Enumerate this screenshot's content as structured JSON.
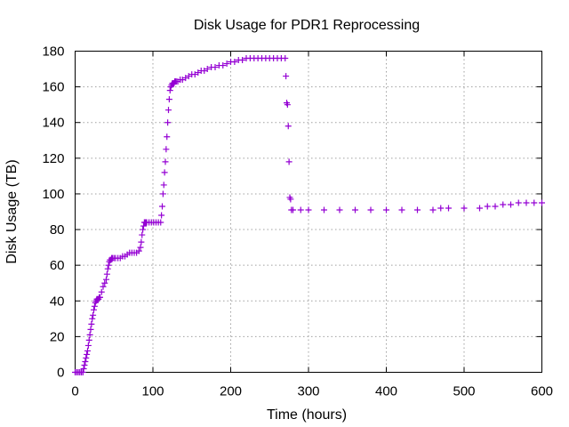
{
  "chart_data": {
    "type": "scatter",
    "title": "Disk Usage for PDR1 Reprocessing",
    "xlabel": "Time (hours)",
    "ylabel": "Disk Usage (TB)",
    "xlim": [
      0,
      600
    ],
    "ylim": [
      0,
      180
    ],
    "xticks": [
      0,
      100,
      200,
      300,
      400,
      500,
      600
    ],
    "yticks": [
      0,
      20,
      40,
      60,
      80,
      100,
      120,
      140,
      160,
      180
    ],
    "grid": true,
    "marker": "+",
    "color": "#9400d3",
    "series": [
      {
        "x": [
          0,
          2,
          4,
          6,
          8,
          10,
          11,
          12,
          13,
          14,
          15,
          16,
          17,
          18,
          19,
          20,
          21,
          22,
          23,
          24,
          25,
          26,
          27,
          28,
          29,
          30,
          31,
          32,
          34,
          36,
          38,
          40,
          41,
          42,
          43,
          44,
          45,
          46,
          47,
          48,
          50,
          52,
          55,
          58,
          61,
          64,
          67,
          70,
          73,
          76,
          79,
          82,
          84,
          85,
          86,
          87,
          88,
          89,
          90,
          91,
          92,
          95,
          98,
          101,
          104,
          107,
          110,
          111,
          112,
          113,
          114,
          115,
          116,
          117,
          118,
          119,
          120,
          121,
          122,
          123,
          124,
          125,
          126,
          127,
          128,
          129,
          130,
          132,
          135,
          138,
          142,
          146,
          150,
          154,
          158,
          162,
          166,
          170,
          175,
          180,
          185,
          190,
          195,
          200,
          205,
          210,
          215,
          220,
          225,
          230,
          235,
          240,
          245,
          250,
          255,
          260,
          265,
          270,
          271,
          272,
          273,
          274,
          275,
          276,
          277,
          278,
          280,
          290,
          300,
          320,
          340,
          360,
          380,
          400,
          420,
          440,
          460,
          470,
          480,
          500,
          520,
          530,
          540,
          550,
          560,
          570,
          580,
          590,
          600
        ],
        "y": [
          0,
          0,
          0,
          0,
          0,
          0,
          2,
          4,
          6,
          8,
          10,
          12,
          15,
          18,
          21,
          24,
          27,
          30,
          32,
          35,
          37,
          39,
          40,
          41,
          41,
          41,
          42,
          42,
          45,
          48,
          50,
          52,
          55,
          58,
          60,
          62,
          63,
          63,
          64,
          64,
          64,
          64,
          64,
          64,
          65,
          65,
          66,
          67,
          67,
          67,
          67,
          68,
          70,
          73,
          77,
          80,
          82,
          84,
          84,
          84,
          84,
          84,
          84,
          84,
          84,
          84,
          84,
          88,
          93,
          100,
          105,
          112,
          118,
          125,
          132,
          140,
          147,
          153,
          158,
          160,
          161,
          162,
          162,
          162,
          163,
          163,
          163,
          163,
          164,
          164,
          165,
          166,
          167,
          167,
          168,
          169,
          169,
          170,
          171,
          171,
          172,
          172,
          173,
          174,
          174,
          175,
          175,
          176,
          176,
          176,
          176,
          176,
          176,
          176,
          176,
          176,
          176,
          176,
          166,
          151,
          150,
          138,
          118,
          98,
          97,
          91,
          91,
          91,
          91,
          91,
          91,
          91,
          91,
          91,
          91,
          91,
          91,
          92,
          92,
          92,
          92,
          93,
          93,
          94,
          94,
          95,
          95,
          95,
          95
        ]
      }
    ]
  }
}
